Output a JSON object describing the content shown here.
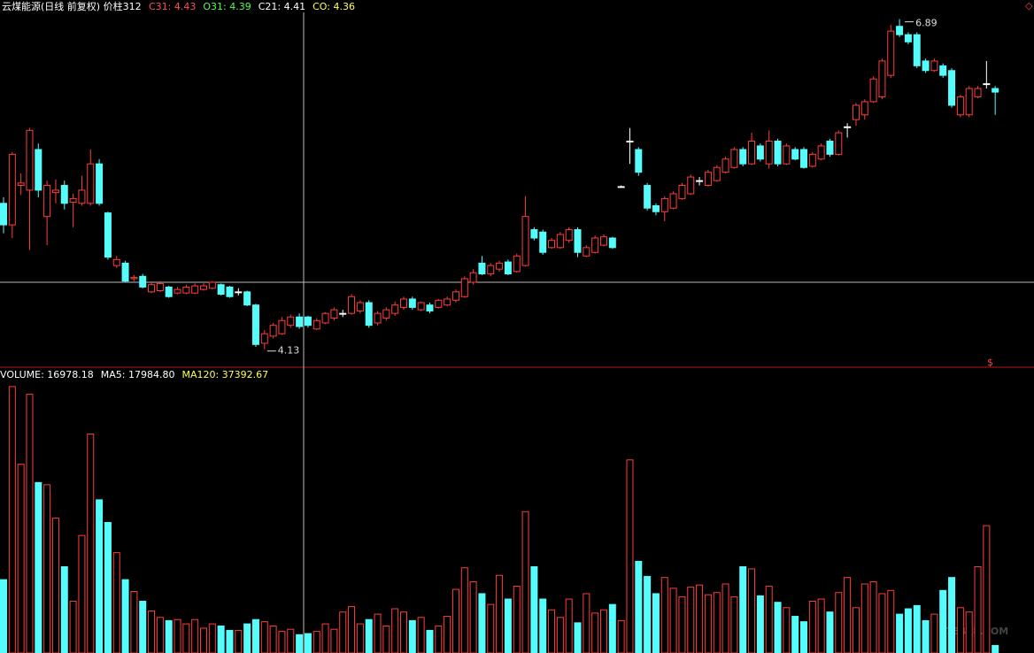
{
  "chart_data": {
    "type": "candlestick",
    "title": "云煤能源(日线 前复权) 价柱312",
    "header": [
      {
        "text": "C31: 4.43",
        "color": "#ff5050"
      },
      {
        "text": "O31: 4.39",
        "color": "#50ff50"
      },
      {
        "text": "C21: 4.41",
        "color": "#ffffff"
      },
      {
        "text": "CO: 4.36",
        "color": "#ffff50"
      }
    ],
    "volume_header": [
      {
        "text": "VOLUME: 16978.18",
        "color": "#ffffff"
      },
      {
        "text": "MA5: 17984.80",
        "color": "#ffffff"
      },
      {
        "text": "MA120: 37392.67",
        "color": "#ffff50"
      }
    ],
    "watermark": "178448.COM",
    "up_color": "#ff3c3c",
    "down_color": "#54fcfc",
    "flat_color": "#ffffff",
    "ylim": [
      3.98,
      7.05
    ],
    "volume_ylim": [
      0,
      251000
    ],
    "extremes": {
      "max": 6.89,
      "min": 4.13
    },
    "open": [
      5.35,
      5.17,
      5.5,
      5.46,
      5.8,
      5.24,
      5.44,
      5.5,
      5.36,
      5.35,
      5.35,
      5.68,
      5.27,
      4.83,
      4.85,
      4.72,
      4.74,
      4.61,
      4.62,
      4.65,
      4.6,
      4.6,
      4.6,
      4.63,
      4.64,
      4.67,
      4.65,
      4.61,
      4.61,
      4.5,
      4.18,
      4.24,
      4.26,
      4.33,
      4.4,
      4.4,
      4.3,
      4.35,
      4.39,
      4.43,
      4.43,
      4.45,
      4.52,
      4.35,
      4.39,
      4.43,
      4.48,
      4.55,
      4.46,
      4.5,
      4.48,
      4.5,
      4.54,
      4.57,
      4.69,
      4.85,
      4.76,
      4.8,
      4.86,
      4.78,
      4.83,
      5.13,
      5.11,
      4.98,
      4.98,
      5.04,
      5.13,
      4.91,
      4.94,
      5.0,
      5.06,
      5.49,
      5.87,
      5.8,
      5.5,
      5.33,
      5.28,
      5.31,
      5.39,
      5.43,
      5.54,
      5.5,
      5.54,
      5.61,
      5.65,
      5.8,
      5.68,
      5.83,
      5.68,
      5.87,
      5.68,
      5.8,
      5.8,
      5.66,
      5.72,
      5.87,
      5.76,
      5.99,
      6.05,
      6.09,
      6.2,
      6.24,
      6.42,
      6.83,
      6.76,
      6.76,
      6.54,
      6.46,
      6.5,
      6.46,
      6.09,
      6.09,
      6.24,
      6.35,
      6.31
    ],
    "high": [
      5.4,
      5.78,
      5.6,
      5.98,
      5.85,
      5.54,
      5.55,
      5.54,
      5.43,
      5.58,
      5.8,
      5.72,
      5.28,
      4.91,
      4.87,
      4.75,
      4.76,
      4.69,
      4.7,
      4.66,
      4.65,
      4.67,
      4.68,
      4.68,
      4.7,
      4.68,
      4.66,
      4.64,
      4.62,
      4.51,
      4.29,
      4.35,
      4.4,
      4.42,
      4.43,
      4.41,
      4.39,
      4.44,
      4.48,
      4.46,
      4.59,
      4.54,
      4.54,
      4.45,
      4.48,
      4.53,
      4.57,
      4.57,
      4.53,
      4.52,
      4.55,
      4.57,
      4.63,
      4.74,
      4.8,
      4.91,
      4.85,
      4.87,
      4.88,
      4.93,
      5.41,
      5.15,
      5.13,
      5.06,
      5.11,
      5.15,
      5.15,
      5.0,
      5.08,
      5.09,
      5.07,
      5.5,
      5.98,
      5.82,
      5.52,
      5.35,
      5.41,
      5.45,
      5.52,
      5.59,
      5.57,
      5.63,
      5.67,
      5.74,
      5.82,
      5.82,
      5.94,
      5.85,
      5.96,
      5.89,
      5.85,
      5.82,
      5.82,
      5.78,
      5.85,
      5.89,
      5.96,
      6.02,
      6.19,
      6.22,
      6.41,
      6.56,
      6.84,
      6.89,
      6.78,
      6.78,
      6.56,
      6.56,
      6.52,
      6.48,
      6.26,
      6.33,
      6.33,
      6.54,
      6.33
    ],
    "low": [
      5.1,
      5.06,
      5.42,
      4.96,
      5.4,
      5.0,
      5.35,
      5.3,
      5.15,
      5.33,
      5.33,
      5.33,
      4.88,
      4.81,
      4.69,
      4.7,
      4.64,
      4.6,
      4.61,
      4.56,
      4.59,
      4.59,
      4.59,
      4.62,
      4.63,
      4.58,
      4.56,
      4.58,
      4.49,
      4.15,
      4.13,
      4.22,
      4.25,
      4.31,
      4.3,
      4.31,
      4.29,
      4.34,
      4.37,
      4.4,
      4.42,
      4.43,
      4.31,
      4.33,
      4.37,
      4.41,
      4.46,
      4.46,
      4.45,
      4.43,
      4.47,
      4.49,
      4.52,
      4.56,
      4.67,
      4.75,
      4.74,
      4.78,
      4.75,
      4.77,
      4.82,
      5.04,
      4.92,
      4.97,
      4.97,
      5.02,
      4.9,
      4.9,
      4.93,
      4.99,
      4.97,
      5.48,
      5.68,
      5.58,
      5.29,
      5.25,
      5.2,
      5.3,
      5.38,
      5.42,
      5.5,
      5.49,
      5.53,
      5.6,
      5.64,
      5.66,
      5.67,
      5.7,
      5.64,
      5.66,
      5.67,
      5.71,
      5.64,
      5.65,
      5.71,
      5.74,
      5.75,
      5.9,
      6.0,
      6.05,
      6.19,
      6.22,
      6.4,
      6.74,
      6.68,
      6.48,
      6.44,
      6.45,
      6.4,
      6.15,
      6.07,
      6.07,
      6.23,
      6.31,
      6.09
    ],
    "close": [
      5.17,
      5.76,
      5.52,
      5.96,
      5.46,
      5.5,
      5.46,
      5.35,
      5.39,
      5.46,
      5.68,
      5.35,
      4.9,
      4.88,
      4.7,
      4.73,
      4.65,
      4.67,
      4.68,
      4.57,
      4.63,
      4.65,
      4.66,
      4.66,
      4.69,
      4.59,
      4.57,
      4.61,
      4.5,
      4.17,
      4.26,
      4.33,
      4.37,
      4.4,
      4.32,
      4.33,
      4.37,
      4.43,
      4.46,
      4.43,
      4.57,
      4.52,
      4.33,
      4.43,
      4.46,
      4.5,
      4.55,
      4.48,
      4.52,
      4.45,
      4.54,
      4.55,
      4.61,
      4.72,
      4.77,
      4.76,
      4.83,
      4.85,
      4.76,
      4.91,
      5.24,
      5.06,
      4.94,
      5.04,
      5.09,
      5.13,
      4.94,
      4.98,
      5.06,
      5.07,
      4.98,
      5.49,
      5.87,
      5.61,
      5.31,
      5.28,
      5.39,
      5.43,
      5.5,
      5.57,
      5.54,
      5.61,
      5.65,
      5.72,
      5.8,
      5.68,
      5.87,
      5.72,
      5.87,
      5.68,
      5.83,
      5.72,
      5.65,
      5.76,
      5.83,
      5.76,
      5.94,
      5.99,
      6.17,
      6.2,
      6.39,
      6.54,
      6.79,
      6.76,
      6.7,
      6.5,
      6.46,
      6.54,
      6.42,
      6.17,
      6.24,
      6.31,
      6.31,
      6.35,
      6.28
    ],
    "volume": [
      68000,
      247000,
      175000,
      240000,
      158000,
      156000,
      125000,
      80000,
      48000,
      109000,
      203000,
      142000,
      121000,
      93000,
      68000,
      57000,
      48000,
      39000,
      33000,
      30000,
      31000,
      27000,
      31000,
      23000,
      27000,
      25000,
      21000,
      21000,
      27000,
      31000,
      29000,
      25000,
      20000,
      22000,
      16978.18,
      18000,
      20000,
      27000,
      22000,
      38000,
      43000,
      27000,
      31000,
      36000,
      25000,
      41000,
      38000,
      30000,
      33000,
      21000,
      25000,
      34000,
      59000,
      79000,
      66000,
      55000,
      45000,
      72000,
      50000,
      62000,
      131000,
      80000,
      50000,
      40000,
      33000,
      50000,
      28000,
      55000,
      37000,
      40000,
      45000,
      30000,
      179000,
      85000,
      71000,
      55000,
      70000,
      60000,
      52000,
      61000,
      63000,
      54000,
      56000,
      64000,
      52000,
      80000,
      78000,
      53000,
      62000,
      47000,
      42000,
      34000,
      29000,
      48000,
      50000,
      38000,
      56000,
      70000,
      42000,
      64000,
      66000,
      55000,
      58000,
      36000,
      41000,
      44000,
      30000,
      36000,
      58000,
      70000,
      42000,
      38000,
      80000,
      118000,
      7000
    ]
  }
}
